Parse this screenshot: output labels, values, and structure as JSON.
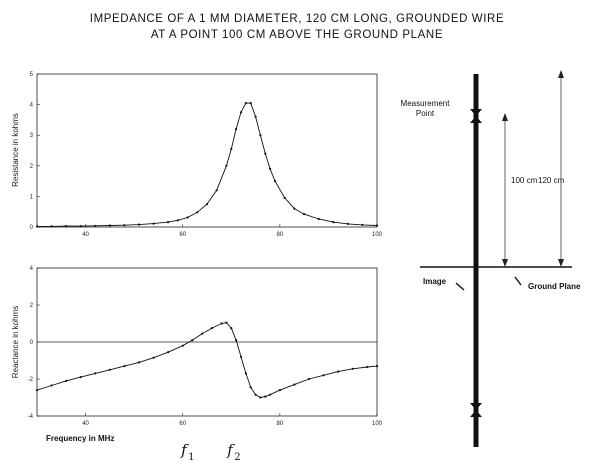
{
  "title": {
    "line1": "IMPEDANCE OF A 1 MM DIAMETER, 120 CM LONG, GROUNDED WIRE",
    "line2": "AT A POINT 100 CM ABOVE THE GROUND PLANE"
  },
  "chart_data": [
    {
      "type": "line",
      "title": "",
      "xlabel": "",
      "ylabel": "Resistance in kohms",
      "xlim": [
        30,
        100
      ],
      "ylim": [
        0,
        5
      ],
      "xticks": [
        "40",
        "60",
        "80",
        "100"
      ],
      "yticks": [
        "0",
        "1",
        "2",
        "3",
        "4",
        "5"
      ],
      "series": [
        {
          "x": [
            30,
            33,
            36,
            39,
            42,
            45,
            48,
            51,
            54,
            57,
            59,
            61,
            63,
            65,
            67,
            69,
            70,
            71,
            72,
            73,
            74,
            75,
            76,
            77,
            78,
            79,
            81,
            83,
            85,
            88,
            91,
            94,
            97,
            100
          ],
          "y": [
            0.02,
            0.02,
            0.03,
            0.03,
            0.04,
            0.05,
            0.06,
            0.08,
            0.11,
            0.16,
            0.22,
            0.31,
            0.48,
            0.75,
            1.2,
            2.0,
            2.55,
            3.2,
            3.75,
            4.05,
            4.05,
            3.6,
            3.0,
            2.4,
            1.9,
            1.5,
            0.95,
            0.6,
            0.42,
            0.26,
            0.16,
            0.1,
            0.07,
            0.05
          ]
        }
      ]
    },
    {
      "type": "line",
      "title": "",
      "xlabel": "Frequency in MHz",
      "ylabel": "Reactance in kohms",
      "xlim": [
        30,
        100
      ],
      "ylim": [
        -4,
        4
      ],
      "xticks": [
        "40",
        "60",
        "80",
        "100"
      ],
      "yticks": [
        "4",
        "2",
        "0",
        "-2",
        "-4"
      ],
      "series": [
        {
          "x": [
            30,
            33,
            36,
            39,
            42,
            45,
            48,
            51,
            54,
            57,
            60,
            62,
            64,
            66,
            68,
            69,
            70,
            71,
            72,
            73,
            74,
            75,
            76,
            77,
            78,
            80,
            83,
            86,
            89,
            92,
            95,
            98,
            100
          ],
          "y": [
            -2.6,
            -2.35,
            -2.1,
            -1.9,
            -1.7,
            -1.5,
            -1.3,
            -1.1,
            -0.85,
            -0.55,
            -0.2,
            0.1,
            0.45,
            0.75,
            1.0,
            1.05,
            0.75,
            0.1,
            -0.8,
            -1.7,
            -2.45,
            -2.85,
            -3.0,
            -2.95,
            -2.85,
            -2.6,
            -2.3,
            -2.0,
            -1.8,
            -1.6,
            -1.45,
            -1.35,
            -1.3
          ]
        }
      ],
      "annotations": [
        {
          "text": "f",
          "subscript": "1",
          "x": 60.5
        },
        {
          "text": "f",
          "subscript": "2",
          "x": 70
        }
      ]
    }
  ],
  "diagram": {
    "measurement_label_line1": "Measurement",
    "measurement_label_line2": "Point",
    "dim_100": "100 cm",
    "dim_120": "120 cm",
    "image_label": "Image",
    "ground_plane_label": "Ground Plane"
  }
}
